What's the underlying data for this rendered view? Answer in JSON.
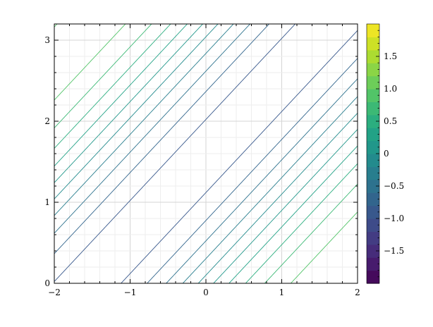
{
  "chart_data": {
    "type": "contour",
    "title": "",
    "xlabel": "",
    "ylabel": "",
    "xlim": [
      -2,
      2
    ],
    "ylim": [
      0,
      3.2
    ],
    "x_ticks": [
      -2,
      -1,
      0,
      1,
      2
    ],
    "x_tick_labels": [
      "−2",
      "−1",
      "0",
      "1",
      "2"
    ],
    "y_ticks": [
      0,
      1,
      2,
      3
    ],
    "y_tick_labels": [
      "0",
      "1",
      "2",
      "3"
    ],
    "grid": true,
    "function": "sin(x - y)",
    "levels": [
      -1.9,
      -1.7,
      -1.5,
      -1.3,
      -1.1,
      -0.9,
      -0.7,
      -0.5,
      -0.3,
      -0.1,
      0.1,
      0.3,
      0.5,
      0.7,
      0.9,
      1.1,
      1.3,
      1.5,
      1.7,
      1.9
    ],
    "colormap": [
      "#440154",
      "#482475",
      "#414487",
      "#355f8d",
      "#2a788e",
      "#21918c",
      "#22a884",
      "#44bf70",
      "#7ad151",
      "#bddf26",
      "#fde725"
    ],
    "colorbar": {
      "range": [
        -2,
        2
      ],
      "ticks": [
        -1.5,
        -1.0,
        -0.5,
        0,
        0.5,
        1.0,
        1.5
      ],
      "tick_labels": [
        "−1.5",
        "−1.0",
        "−0.5",
        "0",
        "0.5",
        "1.0",
        "1.5"
      ]
    }
  }
}
